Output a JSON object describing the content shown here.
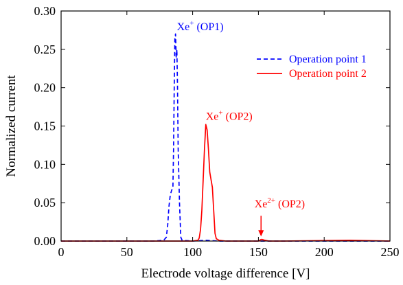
{
  "chart_data": {
    "type": "line",
    "title": "",
    "xlabel": "Electrode voltage difference [V]",
    "ylabel": "Normalized current",
    "xlim": [
      0,
      250
    ],
    "ylim": [
      0,
      0.3
    ],
    "x_ticks": [
      0,
      50,
      100,
      150,
      200,
      250
    ],
    "y_ticks": [
      0.0,
      0.05,
      0.1,
      0.15,
      0.2,
      0.25,
      0.3
    ],
    "x_tick_labels": [
      "0",
      "50",
      "100",
      "150",
      "200",
      "250"
    ],
    "y_tick_labels": [
      "0.00",
      "0.05",
      "0.10",
      "0.15",
      "0.20",
      "0.25",
      "0.30"
    ],
    "grid": false,
    "legend_position": "top-right",
    "series": [
      {
        "name": "Operation point 1",
        "color": "#0000ff",
        "style": "dashed",
        "x": [
          0,
          70,
          78,
          80,
          81,
          82,
          83,
          84,
          85,
          85.5,
          86,
          86.5,
          87,
          87.5,
          88,
          88.5,
          89,
          90,
          91,
          92,
          100,
          110,
          120,
          200,
          250
        ],
        "y": [
          0,
          0,
          0.001,
          0.005,
          0.02,
          0.045,
          0.06,
          0.066,
          0.07,
          0.12,
          0.2,
          0.265,
          0.27,
          0.24,
          0.25,
          0.2,
          0.12,
          0.05,
          0.005,
          0.001,
          0.0,
          0.001,
          0.0,
          0.0,
          0.0
        ]
      },
      {
        "name": "Operation point 2",
        "color": "#ff0000",
        "style": "solid",
        "x": [
          0,
          100,
          104,
          105,
          106,
          107,
          108,
          109,
          110,
          111,
          112,
          113,
          114,
          115,
          116,
          117,
          118,
          120,
          125,
          140,
          150,
          152,
          153,
          155,
          158,
          170,
          220,
          250
        ],
        "y": [
          0,
          0,
          0.001,
          0.004,
          0.015,
          0.04,
          0.08,
          0.12,
          0.152,
          0.145,
          0.12,
          0.09,
          0.08,
          0.07,
          0.04,
          0.01,
          0.003,
          0.001,
          0.0,
          0.0,
          0.0,
          0.002,
          0.002,
          0.001,
          0.0,
          0.0,
          0.001,
          0.0
        ]
      }
    ],
    "annotations": [
      {
        "id": "op1",
        "base": "Xe",
        "sup": "+",
        "suffix": " (OP1)",
        "color": "#0000ff",
        "x": 88,
        "y": 0.275
      },
      {
        "id": "op2-single",
        "base": "Xe",
        "sup": "+",
        "suffix": " (OP2)",
        "color": "#ff0000",
        "x": 110,
        "y": 0.158
      },
      {
        "id": "op2-double",
        "base": "Xe",
        "sup": "2+",
        "suffix": " (OP2)",
        "color": "#ff0000",
        "x": 147,
        "y": 0.044,
        "arrow_from": 0.033,
        "arrow_to": 0.006,
        "arrow_x": 152
      }
    ]
  }
}
